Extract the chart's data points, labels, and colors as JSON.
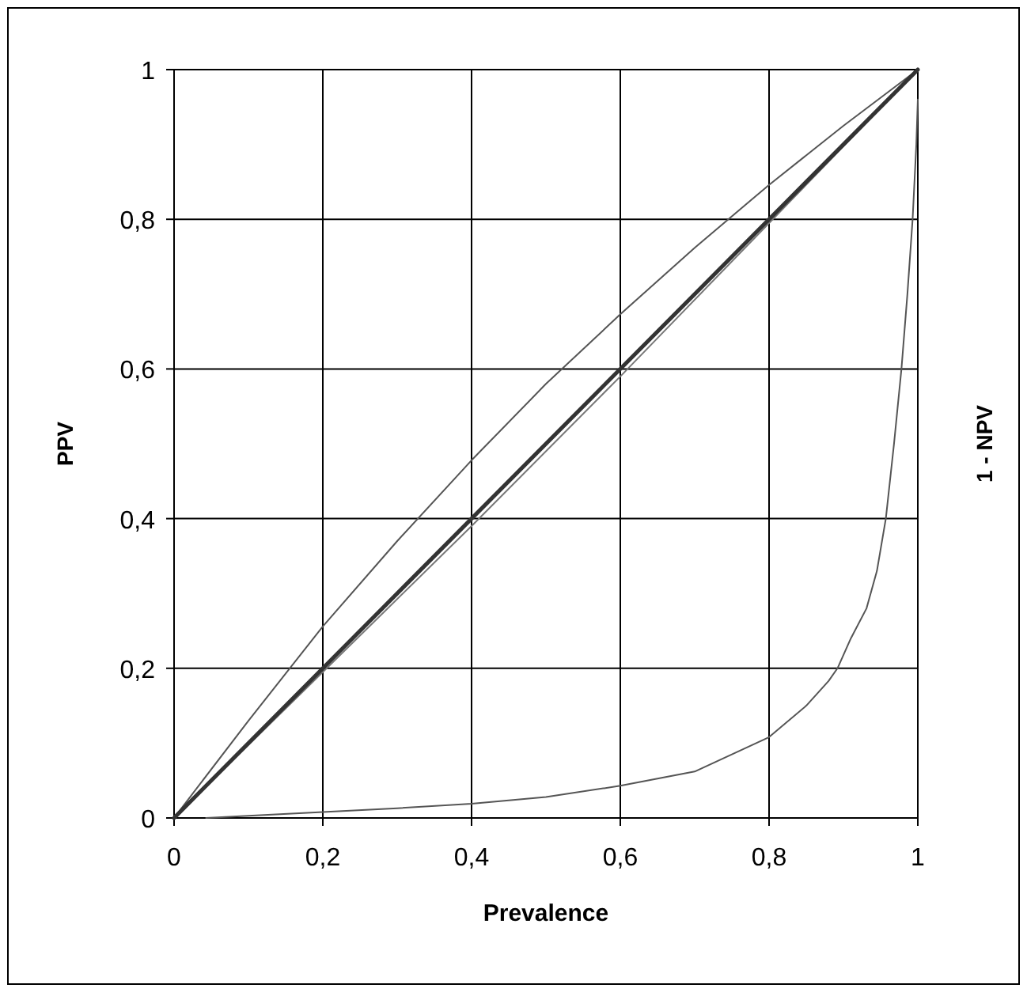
{
  "chart_data": {
    "type": "line",
    "xlabel": "Prevalence",
    "ylabel": "PPV",
    "y2label": "1 - NPV",
    "xlim": [
      0,
      1
    ],
    "ylim": [
      0,
      1
    ],
    "xticks": [
      0,
      {
        "value": 0.2,
        "label": "0,2"
      },
      {
        "value": 0.4,
        "label": "0,4"
      },
      {
        "value": 0.6,
        "label": "0,6"
      },
      {
        "value": 0.8,
        "label": "0,8"
      },
      1
    ],
    "yticks": [
      0,
      {
        "value": 0.2,
        "label": "0,2"
      },
      {
        "value": 0.4,
        "label": "0,4"
      },
      {
        "value": 0.6,
        "label": "0,6"
      },
      {
        "value": 0.8,
        "label": "0,8"
      },
      1
    ],
    "grid": true,
    "marker": "none",
    "series": [
      {
        "color": "#555555",
        "x": [
          0,
          0.1,
          0.2,
          0.3,
          0.4,
          0.5,
          0.6,
          0.7,
          0.8,
          0.9,
          1
        ],
        "values": [
          0,
          0.13,
          0.256,
          0.37,
          0.478,
          0.58,
          0.673,
          0.762,
          0.846,
          0.925,
          1
        ]
      },
      {
        "color": "#777777",
        "x": [
          0,
          0.2,
          0.4,
          0.6,
          0.8,
          1
        ],
        "values": [
          0,
          0.195,
          0.39,
          0.59,
          0.795,
          1
        ]
      },
      {
        "color": "#333333",
        "x": [
          0,
          1
        ],
        "values": [
          0,
          1
        ]
      },
      {
        "color": "#555555",
        "x": [
          0.043,
          0.1,
          0.2,
          0.3,
          0.4,
          0.5,
          0.6,
          0.7,
          0.8,
          0.85,
          0.88,
          0.892,
          0.91,
          0.931,
          0.945,
          0.957,
          0.968,
          0.978,
          0.986,
          0.993,
          0.998,
          1
        ],
        "values": [
          0,
          0.003,
          0.008,
          0.013,
          0.019,
          0.028,
          0.043,
          0.062,
          0.108,
          0.15,
          0.183,
          0.2,
          0.24,
          0.28,
          0.33,
          0.4,
          0.5,
          0.6,
          0.7,
          0.8,
          0.9,
          0.96
        ]
      }
    ]
  }
}
